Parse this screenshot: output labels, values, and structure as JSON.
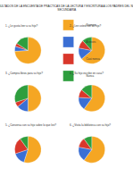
{
  "page_title": [
    "RESULTADOS DE LA ENCUESTA DE PRÁCTICAS DE LA LECTURA Y ESCRITURA A LOS PADRES DEL NIVEL",
    "SECUNDARIA"
  ],
  "chart_data": [
    {
      "type": "pie",
      "title": "1. ¿Le gusta leer a su hijo?",
      "categories": [
        "Siempre",
        "A veces",
        "Casi nunca",
        "Nunca"
      ],
      "values": [
        74,
        6,
        4,
        16
      ],
      "colors": [
        "#f5a623",
        "#3b6fd4",
        "#d9372b",
        "#2e9e3e"
      ]
    },
    {
      "type": "pie",
      "title": "2. ¿Lee usted con su hijo?",
      "categories": [
        "Siempre",
        "A veces",
        "Casi nunca",
        "Nunca"
      ],
      "values": [
        64,
        14,
        10,
        12
      ],
      "colors": [
        "#f5a623",
        "#3b6fd4",
        "#d9372b",
        "#2e9e3e"
      ]
    },
    {
      "type": "pie",
      "title": "3. ¿Compra libros para su hijo?",
      "categories": [
        "Siempre",
        "A veces",
        "Casi nunca",
        "Nunca"
      ],
      "values": [
        50,
        14,
        6,
        30
      ],
      "colors": [
        "#f5a623",
        "#3b6fd4",
        "#d9372b",
        "#2e9e3e"
      ]
    },
    {
      "type": "pie",
      "title": "4. ¿Su hijo escribe en casa?",
      "categories": [
        "Siempre",
        "A veces",
        "Casi nunca",
        "Nunca"
      ],
      "values": [
        60,
        16,
        10,
        14
      ],
      "colors": [
        "#f5a623",
        "#3b6fd4",
        "#d9372b",
        "#2e9e3e"
      ]
    },
    {
      "type": "pie",
      "title": "5. ¿Conversa con su hijo sobre lo que lee?",
      "categories": [
        "Siempre",
        "A veces",
        "Casi nunca",
        "Nunca"
      ],
      "values": [
        55,
        15,
        20,
        10
      ],
      "colors": [
        "#f5a623",
        "#3b6fd4",
        "#d9372b",
        "#2e9e3e"
      ]
    },
    {
      "type": "pie",
      "title": "6. ¿Visita la biblioteca con su hijo?",
      "categories": [
        "Siempre",
        "A veces",
        "Casi nunca",
        "Nunca"
      ],
      "values": [
        60,
        18,
        12,
        10
      ],
      "colors": [
        "#f5a623",
        "#3b6fd4",
        "#d9372b",
        "#2e9e3e"
      ]
    }
  ]
}
